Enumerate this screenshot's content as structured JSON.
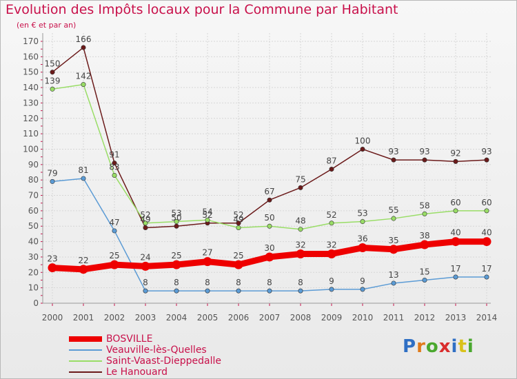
{
  "title": "Evolution des Impôts locaux pour la Commune par Habitant",
  "subtitle": "(en € et par an)",
  "logo": "Proxiti",
  "chart_data": {
    "type": "line",
    "categories": [
      "2000",
      "2001",
      "2002",
      "2003",
      "2004",
      "2005",
      "2006",
      "2007",
      "2008",
      "2009",
      "2010",
      "2011",
      "2012",
      "2013",
      "2014"
    ],
    "ylim": [
      0,
      170
    ],
    "yticks": [
      0,
      10,
      20,
      30,
      40,
      50,
      60,
      70,
      80,
      90,
      100,
      110,
      120,
      130,
      140,
      150,
      160,
      170
    ],
    "grid": true,
    "legend_position": "bottom-left",
    "series": [
      {
        "name": "BOSVILLE",
        "color": "#ee0000",
        "values": [
          23,
          22,
          25,
          24,
          25,
          27,
          25,
          30,
          32,
          32,
          36,
          35,
          38,
          40,
          40
        ]
      },
      {
        "name": "Veauville-lès-Quelles",
        "color": "#5b9bd5",
        "values": [
          79,
          81,
          47,
          8,
          8,
          8,
          8,
          8,
          8,
          9,
          9,
          13,
          15,
          17,
          17
        ]
      },
      {
        "name": "Saint-Vaast-Dieppedalle",
        "color": "#99dd66",
        "values": [
          139,
          142,
          83,
          52,
          53,
          54,
          49,
          50,
          48,
          52,
          53,
          55,
          58,
          60,
          60
        ]
      },
      {
        "name": "Le Hanouard",
        "color": "#6b1a1a",
        "values": [
          150,
          166,
          91,
          49,
          50,
          52,
          52,
          67,
          75,
          87,
          100,
          93,
          93,
          92,
          93
        ]
      }
    ]
  }
}
